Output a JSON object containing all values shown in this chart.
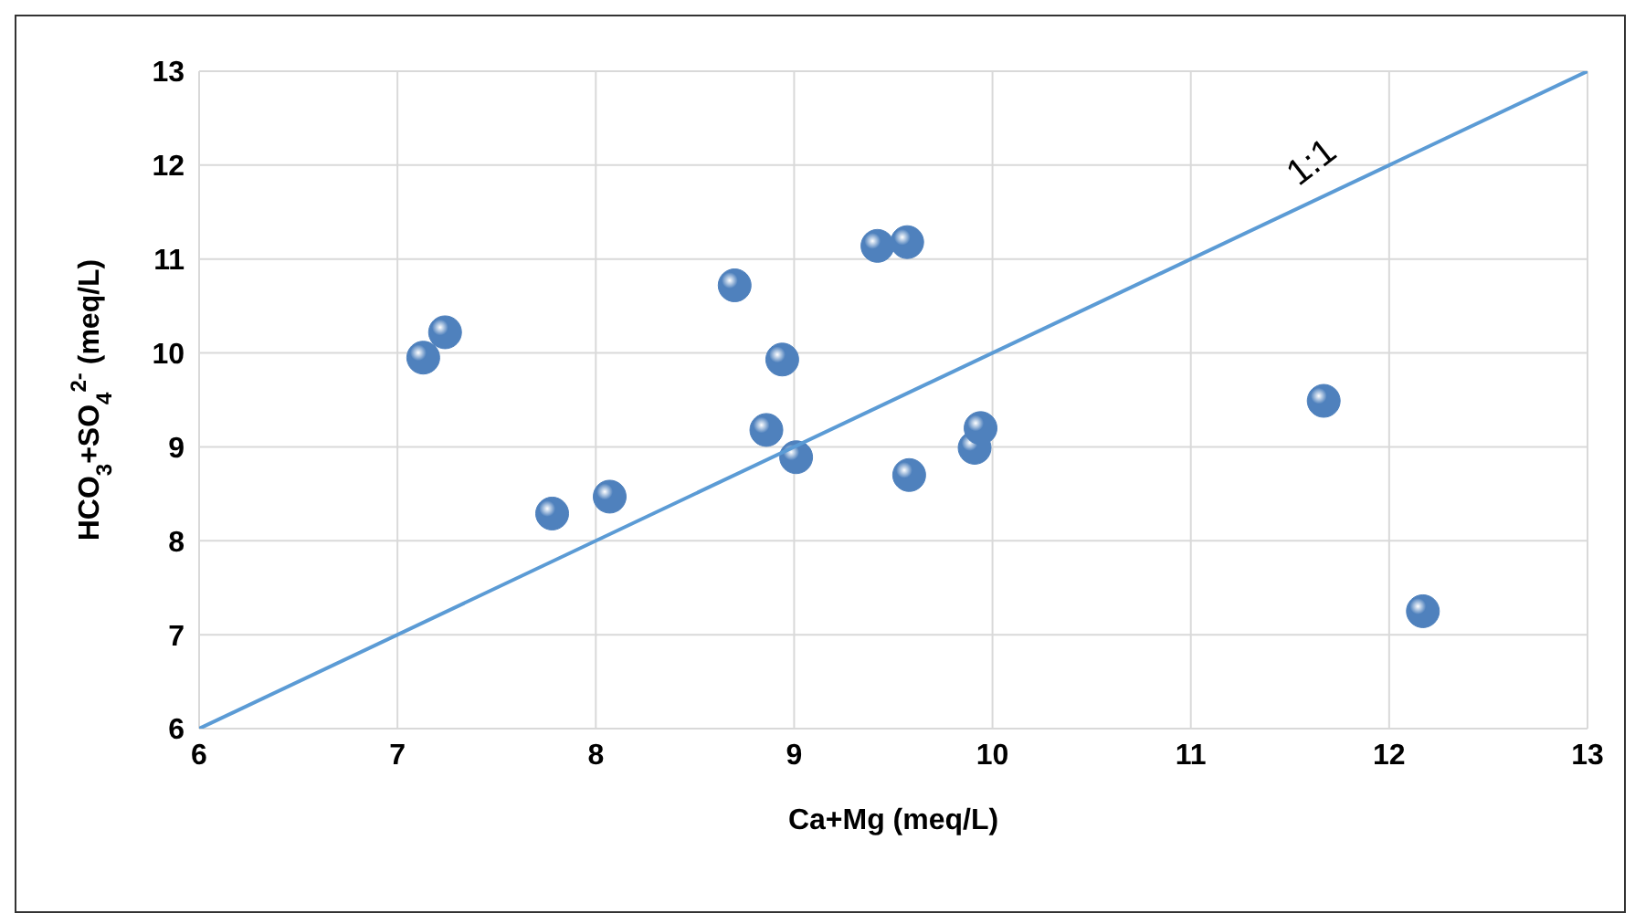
{
  "chart_data": {
    "type": "scatter",
    "xlabel": "Ca+Mg (meq/L)",
    "ylabel": "HCO$_{3}$+SO$_{4}$$^{2-}$ (meq/L)",
    "xlim": [
      6,
      13
    ],
    "xticks": [
      6,
      7,
      8,
      9,
      10,
      11,
      12,
      13
    ],
    "ylim": [
      6,
      13
    ],
    "yticks": [
      6,
      7,
      8,
      9,
      10,
      11,
      12,
      13
    ],
    "grid": true,
    "marker": "circle",
    "series": [
      {
        "color": "#4f81bd",
        "x": [
          7.13,
          7.24,
          7.78,
          8.07,
          8.7,
          8.94,
          8.86,
          9.01,
          9.42,
          9.57,
          9.58,
          9.91,
          9.94,
          11.67,
          12.17
        ],
        "values": [
          9.95,
          10.22,
          8.29,
          8.47,
          10.72,
          9.93,
          9.18,
          8.89,
          11.14,
          11.18,
          8.7,
          8.99,
          9.2,
          9.49,
          7.25
        ]
      },
      {
        "type": "line",
        "color": "#5b9bd5",
        "marker": "none",
        "x": [
          6,
          13
        ],
        "values": [
          6,
          13
        ]
      }
    ],
    "annotations": [
      {
        "text": "1:1",
        "x": 11.7,
        "y": 11.7
      }
    ]
  }
}
